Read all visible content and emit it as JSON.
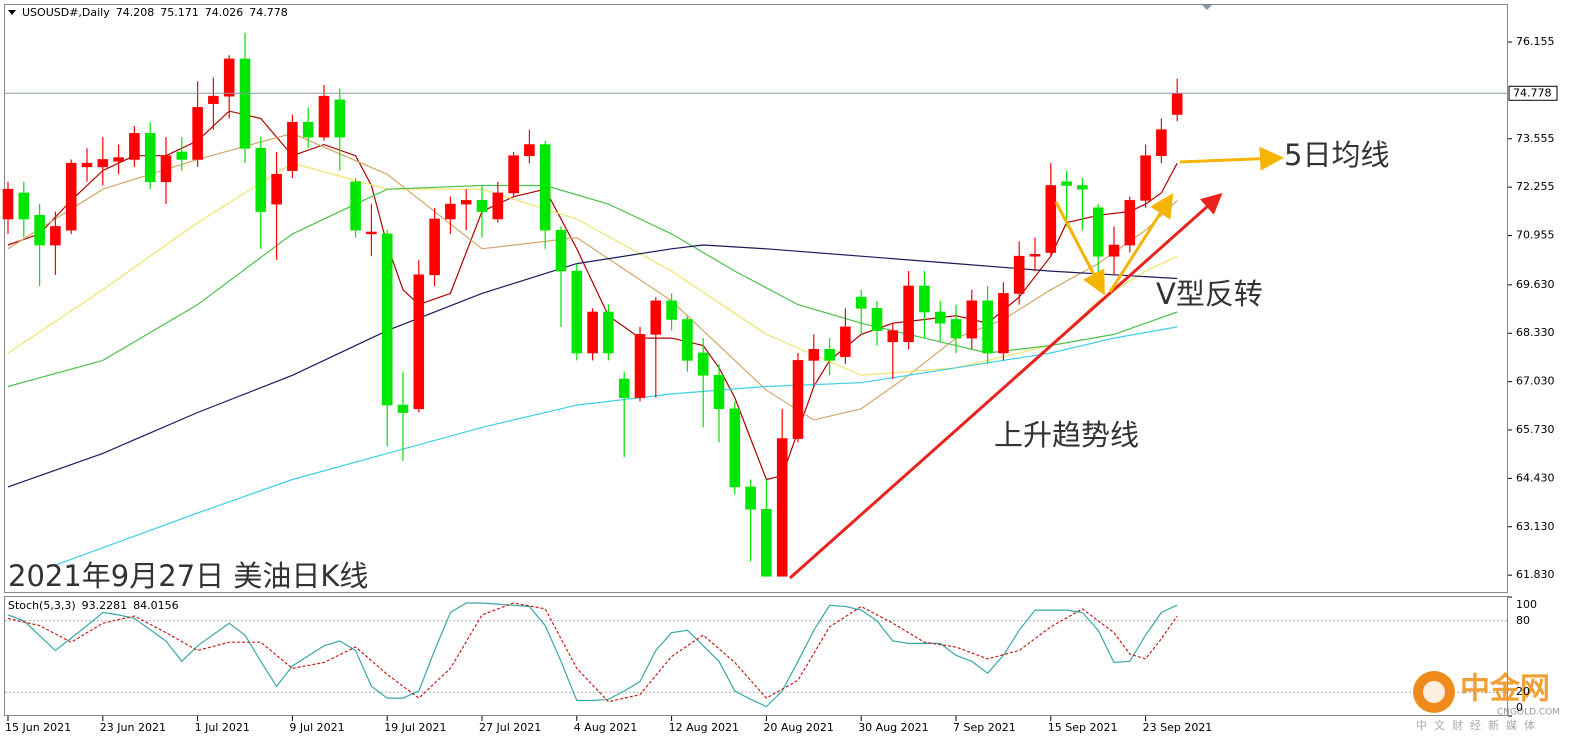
{
  "chart_data": [
    {
      "type": "candlestick",
      "symbol": "USOUSD#,Daily",
      "title": "2021年9月27日 美油日K线",
      "annotations": [
        "5日均线",
        "V型反转",
        "上升趋势线"
      ],
      "categories": [
        "15 Jun 2021",
        null,
        null,
        null,
        null,
        null,
        "23 Jun 2021",
        null,
        null,
        null,
        null,
        null,
        "1 Jul 2021",
        null,
        null,
        null,
        null,
        null,
        "9 Jul 2021",
        null,
        null,
        null,
        null,
        null,
        "19 Jul 2021",
        null,
        null,
        null,
        null,
        null,
        "27 Jul 2021",
        null,
        null,
        null,
        null,
        null,
        "4 Aug 2021",
        null,
        null,
        null,
        null,
        null,
        "12 Aug 2021",
        null,
        null,
        null,
        null,
        null,
        "20 Aug 2021",
        null,
        null,
        null,
        null,
        null,
        "30 Aug 2021",
        null,
        null,
        null,
        null,
        null,
        "7 Sep 2021",
        null,
        null,
        null,
        null,
        null,
        "15 Sep 2021",
        null,
        null,
        null,
        null,
        null,
        "23 Sep 2021",
        null,
        null
      ],
      "open": [
        71.4,
        72.1,
        71.5,
        70.7,
        71.1,
        72.8,
        72.8,
        72.95,
        73.0,
        73.7,
        72.4,
        73.2,
        73.0,
        74.5,
        74.7,
        75.7,
        73.3,
        71.8,
        72.7,
        74.0,
        73.6,
        74.6,
        72.4,
        71.0,
        71.0,
        66.4,
        66.3,
        69.9,
        71.4,
        71.8,
        71.9,
        71.4,
        72.1,
        73.1,
        73.4,
        71.1,
        70.0,
        67.8,
        68.9,
        67.1,
        66.6,
        68.3,
        69.2,
        68.7,
        67.8,
        67.2,
        66.3,
        64.2,
        63.6,
        61.8,
        65.5,
        67.6,
        67.9,
        67.7,
        69.3,
        69.0,
        68.1,
        68.1,
        69.6,
        68.9,
        68.7,
        68.2,
        69.2,
        67.8,
        69.4,
        70.4,
        70.5,
        72.4,
        72.3,
        71.7,
        70.4,
        70.7,
        71.9,
        73.1,
        74.208
      ],
      "high": [
        72.4,
        72.4,
        71.8,
        71.6,
        73.0,
        73.3,
        73.6,
        73.4,
        73.9,
        74.0,
        73.6,
        73.6,
        75.1,
        75.2,
        75.8,
        76.4,
        73.6,
        73.2,
        74.2,
        74.4,
        75.0,
        74.9,
        72.5,
        71.8,
        71.1,
        67.3,
        70.3,
        71.7,
        72.0,
        72.2,
        72.3,
        72.4,
        73.2,
        73.8,
        73.5,
        71.2,
        70.2,
        69.0,
        69.1,
        67.3,
        68.5,
        69.3,
        69.4,
        68.8,
        68.2,
        67.5,
        66.5,
        64.4,
        64.4,
        66.3,
        67.8,
        68.3,
        68.2,
        69.0,
        69.5,
        69.2,
        68.6,
        70.0,
        70.0,
        69.2,
        69.1,
        69.5,
        69.6,
        69.7,
        70.8,
        70.9,
        72.9,
        72.7,
        72.5,
        71.8,
        71.2,
        72.0,
        73.4,
        74.1,
        75.171
      ],
      "low": [
        71.0,
        70.9,
        69.6,
        69.9,
        71.0,
        72.4,
        72.3,
        72.6,
        72.8,
        72.2,
        71.8,
        72.7,
        72.8,
        73.8,
        74.1,
        72.9,
        70.6,
        70.3,
        72.5,
        73.3,
        73.5,
        72.7,
        70.9,
        70.4,
        65.3,
        64.9,
        66.2,
        69.6,
        71.0,
        71.1,
        70.9,
        71.3,
        72.0,
        72.9,
        70.6,
        68.5,
        67.6,
        67.6,
        67.6,
        65.0,
        66.5,
        66.6,
        68.4,
        67.3,
        65.8,
        65.4,
        64.0,
        62.2,
        61.8,
        61.8,
        65.4,
        66.9,
        67.2,
        67.5,
        68.3,
        68.0,
        67.1,
        67.9,
        68.2,
        68.1,
        67.8,
        67.9,
        67.5,
        67.6,
        69.1,
        70.0,
        70.4,
        71.2,
        71.1,
        69.5,
        69.9,
        70.5,
        71.7,
        72.9,
        74.026
      ],
      "close": [
        72.2,
        71.4,
        70.7,
        71.2,
        72.9,
        72.9,
        73.0,
        73.05,
        73.7,
        72.4,
        73.1,
        73.0,
        74.4,
        74.7,
        75.7,
        73.3,
        71.6,
        72.6,
        74.0,
        73.6,
        74.7,
        73.6,
        71.1,
        71.05,
        66.4,
        66.2,
        69.9,
        71.4,
        71.8,
        71.9,
        71.6,
        72.1,
        73.1,
        73.4,
        71.1,
        70.0,
        67.8,
        68.9,
        67.8,
        66.6,
        68.3,
        69.2,
        68.7,
        67.6,
        67.2,
        66.3,
        64.2,
        63.6,
        61.8,
        65.5,
        67.6,
        67.9,
        67.6,
        68.5,
        69.0,
        68.4,
        68.4,
        69.6,
        68.9,
        68.6,
        68.2,
        69.2,
        67.8,
        69.4,
        70.4,
        70.45,
        72.3,
        72.3,
        72.2,
        70.4,
        70.7,
        71.9,
        73.1,
        73.8,
        74.778
      ],
      "up_color": "#ff0000",
      "down_color": "#00e600",
      "series": [
        {
          "color": "#b00000",
          "x": [
            0,
            2,
            4,
            6,
            8,
            10,
            12,
            14,
            16,
            18,
            20,
            22,
            23,
            24,
            25,
            26,
            28,
            30,
            32,
            34,
            36,
            38,
            40,
            42,
            44,
            45,
            46,
            47,
            48,
            49,
            50,
            51,
            52,
            54,
            56,
            58,
            60,
            62,
            64,
            66,
            67,
            69,
            71,
            72,
            73,
            74
          ],
          "values": [
            70.7,
            71.0,
            71.9,
            72.7,
            73.1,
            73.1,
            73.5,
            74.3,
            74.1,
            73.1,
            73.4,
            73.1,
            72.3,
            70.7,
            69.5,
            69.1,
            69.4,
            71.6,
            72.0,
            72.2,
            70.6,
            68.8,
            68.2,
            68.2,
            68.0,
            67.4,
            66.6,
            65.5,
            64.4,
            64.5,
            65.7,
            66.9,
            67.6,
            68.3,
            68.6,
            68.7,
            68.8,
            68.6,
            69.3,
            70.4,
            71.3,
            71.5,
            71.6,
            71.8,
            72.1,
            72.9
          ]
        },
        {
          "color": "#d2a868",
          "x": [
            0,
            6,
            12,
            18,
            24,
            30,
            36,
            42,
            48,
            51,
            54,
            57,
            60,
            63,
            66,
            69,
            72,
            74
          ],
          "values": [
            70.6,
            72.2,
            73.0,
            73.7,
            72.6,
            70.6,
            70.9,
            69.2,
            66.8,
            66.0,
            66.3,
            67.2,
            68.2,
            68.7,
            69.5,
            70.2,
            71.1,
            71.9
          ]
        },
        {
          "color": "#f2e36a",
          "x": [
            0,
            6,
            12,
            18,
            24,
            30,
            36,
            42,
            48,
            54,
            60,
            66,
            69,
            72,
            74
          ],
          "values": [
            67.8,
            69.5,
            71.3,
            72.9,
            72.2,
            72.2,
            71.4,
            70.0,
            68.3,
            67.2,
            67.4,
            68.0,
            69.2,
            70.0,
            70.4
          ]
        },
        {
          "color": "#4cc24c",
          "x": [
            0,
            6,
            12,
            18,
            24,
            30,
            34,
            38,
            42,
            46,
            50,
            54,
            58,
            62,
            66,
            70,
            74
          ],
          "values": [
            66.9,
            67.6,
            69.1,
            71.0,
            72.2,
            72.3,
            72.3,
            71.8,
            71.0,
            70.0,
            69.1,
            68.6,
            68.2,
            67.8,
            68.0,
            68.3,
            68.9
          ]
        },
        {
          "color": "#1a1a5c",
          "x": [
            0,
            6,
            12,
            18,
            24,
            30,
            36,
            42,
            44,
            48,
            54,
            60,
            66,
            70,
            74
          ],
          "values": [
            64.2,
            65.1,
            66.2,
            67.2,
            68.4,
            69.4,
            70.2,
            70.6,
            70.7,
            70.6,
            70.4,
            70.2,
            70.0,
            69.9,
            69.8
          ]
        },
        {
          "color": "#3fd0e6",
          "x": [
            3,
            12,
            18,
            24,
            30,
            36,
            42,
            48,
            54,
            60,
            66,
            70,
            74
          ],
          "values": [
            62.1,
            63.5,
            64.4,
            65.1,
            65.8,
            66.4,
            66.7,
            66.9,
            67.0,
            67.4,
            67.8,
            68.2,
            68.5
          ]
        }
      ],
      "ylim": [
        61.35,
        77.15
      ],
      "yticks": [
        76.155,
        73.555,
        72.255,
        70.955,
        {
          "value": 69.63,
          "label": "69.630"
        },
        {
          "value": 68.33,
          "label": "68.330"
        },
        {
          "value": 67.03,
          "label": "67.030"
        },
        {
          "value": 65.73,
          "label": "65.730"
        },
        {
          "value": 64.43,
          "label": "64.430"
        },
        {
          "value": 63.13,
          "label": "63.130"
        },
        {
          "value": 61.83,
          "label": "61.830"
        }
      ]
    },
    {
      "type": "line",
      "label": "Stoch(5,3,3)",
      "series": [
        {
          "color": "#3aa8a8",
          "dashed": false,
          "x": [
            0,
            1,
            3,
            5,
            6,
            7,
            8,
            10,
            11,
            12,
            14,
            15,
            16,
            17,
            18,
            20,
            21,
            22,
            23,
            24,
            25,
            26,
            27,
            28,
            29,
            30,
            32,
            33,
            34,
            35,
            36,
            37,
            38,
            39,
            40,
            41,
            42,
            43,
            44,
            45,
            46,
            47,
            48,
            49,
            50,
            51,
            52,
            53,
            54,
            55,
            56,
            57,
            58,
            59,
            60,
            61,
            62,
            63,
            64,
            65,
            66,
            67,
            68,
            69,
            70,
            71,
            72,
            73,
            74
          ],
          "values": [
            85,
            80,
            55,
            76,
            87,
            85,
            82,
            63,
            46,
            59,
            78,
            68,
            46,
            25,
            42,
            59,
            63,
            55,
            25,
            15,
            15,
            21,
            55,
            87,
            95,
            95,
            93,
            92,
            76,
            46,
            13,
            13,
            14,
            21,
            29,
            55,
            70,
            72,
            59,
            46,
            21,
            14,
            8,
            21,
            46,
            72,
            93,
            92,
            89,
            80,
            63,
            61,
            61,
            61,
            51,
            46,
            36,
            51,
            72,
            89,
            89,
            89,
            87,
            72,
            45,
            46,
            68,
            87,
            93.2281
          ]
        },
        {
          "color": "#c0201a",
          "dashed": true,
          "x": [
            0,
            2,
            4,
            6,
            8,
            10,
            12,
            14,
            16,
            18,
            20,
            22,
            24,
            26,
            28,
            30,
            32,
            34,
            36,
            38,
            40,
            42,
            44,
            46,
            48,
            50,
            52,
            54,
            56,
            58,
            60,
            62,
            64,
            66,
            68,
            70,
            71,
            72,
            73,
            74
          ],
          "values": [
            82,
            76,
            62,
            78,
            84,
            70,
            55,
            62,
            62,
            40,
            45,
            58,
            35,
            15,
            40,
            85,
            95,
            90,
            40,
            12,
            18,
            50,
            68,
            45,
            15,
            30,
            75,
            92,
            78,
            62,
            58,
            48,
            55,
            75,
            90,
            70,
            52,
            48,
            65,
            84.0156
          ]
        }
      ],
      "ylim": [
        0,
        100
      ],
      "yticks": [
        0,
        20,
        80,
        100
      ]
    }
  ],
  "watermark": {
    "name": "中金网",
    "domain": "CNGOLD.COM",
    "tagline": "中文财经新媒体"
  }
}
